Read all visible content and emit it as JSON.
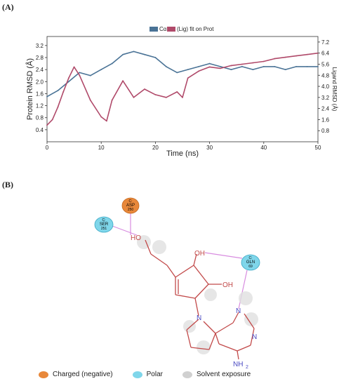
{
  "panel_a_label": "(A)",
  "panel_b_label": "(B)",
  "chart_data": {
    "type": "line",
    "title": "",
    "legend": {
      "label_left": "Cα",
      "label_right": "(Lig) fit on Prot",
      "placement": "top"
    },
    "xlabel": "Time (ns)",
    "ylabel_left": "Protein RMSD (Å)",
    "ylabel_right": "Ligand RMSD (Å)",
    "xlim": [
      0,
      50
    ],
    "ylim_left": [
      0,
      3.5
    ],
    "ylim_right": [
      0,
      7.6
    ],
    "x_ticks": [
      "0",
      "10",
      "20",
      "30",
      "40",
      "50"
    ],
    "y_left_ticks": [
      "0.4",
      "0.8",
      "1.2",
      "1.6",
      "2.0",
      "2.4",
      "2.8",
      "3.2"
    ],
    "y_right_ticks": [
      "0.8",
      "1.6",
      "2.4",
      "3.2",
      "4.0",
      "4.8",
      "5.6",
      "6.4",
      "7.2"
    ],
    "series": [
      {
        "name": "Cα",
        "axis": "left",
        "color": "#4a7396",
        "x": [
          0,
          2,
          4,
          6,
          8,
          10,
          12,
          14,
          16,
          18,
          20,
          22,
          24,
          26,
          28,
          30,
          32,
          34,
          36,
          38,
          40,
          42,
          44,
          46,
          48,
          50
        ],
        "y": [
          1.5,
          1.7,
          2.0,
          2.3,
          2.2,
          2.4,
          2.6,
          2.9,
          3.0,
          2.9,
          2.8,
          2.5,
          2.3,
          2.4,
          2.5,
          2.6,
          2.5,
          2.4,
          2.5,
          2.4,
          2.5,
          2.5,
          2.4,
          2.5,
          2.5,
          2.5
        ]
      },
      {
        "name": "(Lig) fit on Prot",
        "axis": "right",
        "color": "#b04a6a",
        "x": [
          0,
          1,
          2,
          3,
          4,
          5,
          6,
          8,
          10,
          11,
          12,
          14,
          16,
          18,
          20,
          22,
          24,
          25,
          26,
          28,
          30,
          32,
          34,
          36,
          38,
          40,
          42,
          44,
          46,
          48,
          50
        ],
        "y": [
          1.2,
          1.6,
          2.5,
          3.6,
          4.6,
          5.4,
          4.8,
          3.0,
          1.8,
          1.5,
          3.0,
          4.4,
          3.2,
          3.8,
          3.4,
          3.2,
          3.6,
          3.2,
          4.6,
          5.1,
          5.4,
          5.3,
          5.5,
          5.6,
          5.7,
          5.8,
          6.0,
          6.1,
          6.2,
          6.3,
          6.4
        ]
      }
    ]
  },
  "diagram": {
    "residues": [
      {
        "chain": "C:",
        "name": "ASP",
        "num": "250",
        "type": "charged"
      },
      {
        "chain": "C:",
        "name": "SER",
        "num": "251",
        "type": "polar"
      },
      {
        "chain": "C:",
        "name": "GLN",
        "num": "69",
        "type": "polar"
      }
    ],
    "atoms": {
      "ho": "HO",
      "oh1": "OH",
      "oh2": "OH",
      "n1": "N",
      "n2": "N",
      "n3": "N",
      "nh2": "NH",
      "nh2_sub": "2"
    },
    "legend": [
      {
        "label": "Charged (negative)",
        "color": "#e8883a"
      },
      {
        "label": "Polar",
        "color": "#7fd6ea"
      },
      {
        "label": "Solvent exposure",
        "color": "#d0d0d0"
      }
    ]
  }
}
